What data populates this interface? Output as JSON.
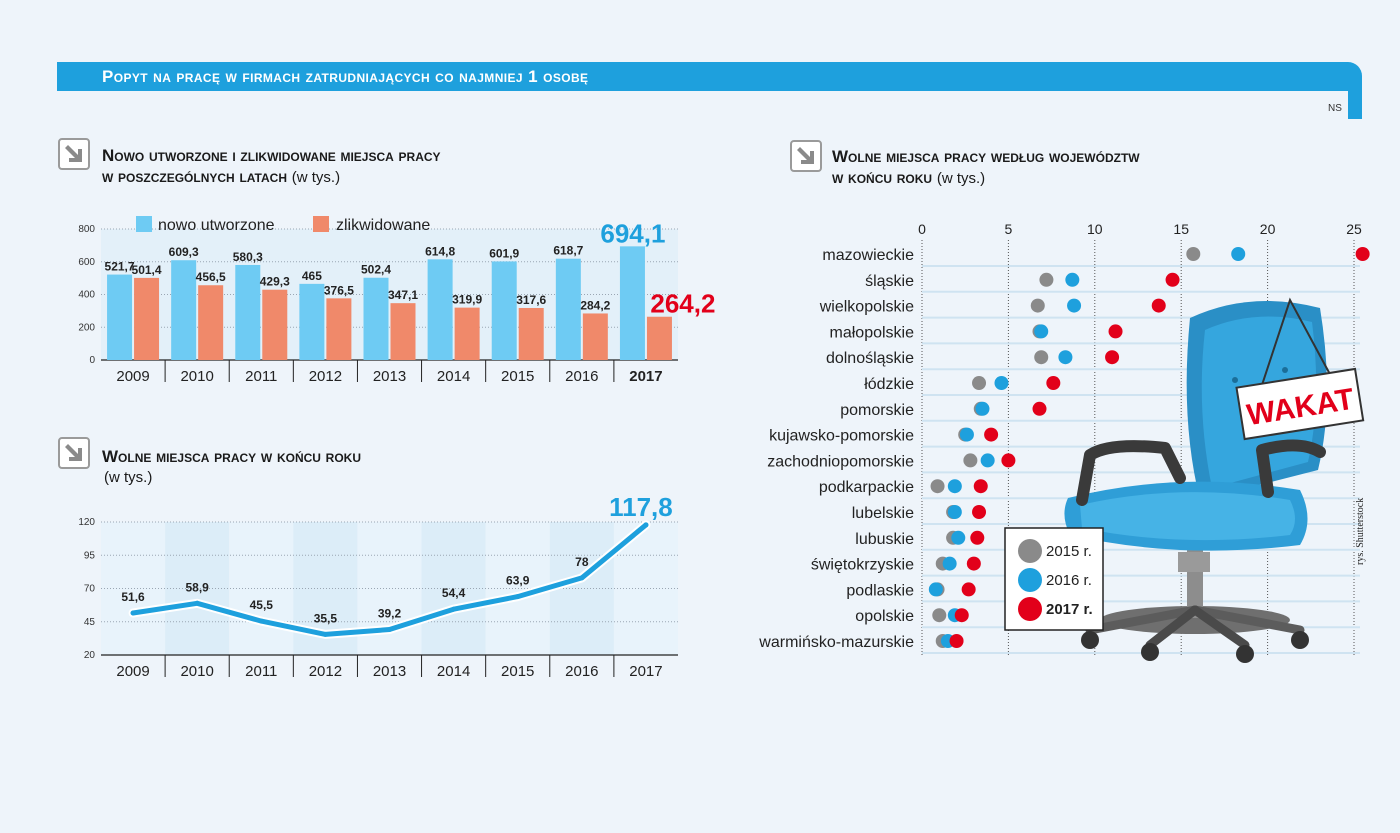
{
  "banner": {
    "title": "Popyt na pracę w firmach zatrudniających co najmniej 1 osobę",
    "source": "NS"
  },
  "colors": {
    "blue": "#6ecbf3",
    "salmon": "#f0896a",
    "accent_blue": "#1ea0dd",
    "red": "#e2001a",
    "gray": "#8a8a8a"
  },
  "section1": {
    "title_line1": "Nowo utworzone i zlikwidowane miejsca pracy",
    "title_line2": "w poszczególnych latach",
    "unit": "(w tys.)"
  },
  "section2": {
    "title_line1": "Wolne miejsca pracy w końcu roku",
    "unit": "(w tys.)"
  },
  "section3": {
    "title_line1": "Wolne miejsca pracy według województw",
    "title_line2": "w końcu roku",
    "unit": "(w tys.)",
    "sign_text": "WAKAT"
  },
  "credit": "rys. Shutterstock",
  "chart_data": [
    {
      "type": "bar",
      "title": "Nowo utworzone i zlikwidowane miejsca pracy w poszczególnych latach (w tys.)",
      "categories": [
        "2009",
        "2010",
        "2011",
        "2012",
        "2013",
        "2014",
        "2015",
        "2016",
        "2017"
      ],
      "series": [
        {
          "name": "nowo utworzone",
          "values": [
            521.7,
            609.3,
            580.3,
            465,
            502.4,
            614.8,
            601.9,
            618.7,
            694.1
          ],
          "labels": [
            "521,7",
            "609,3",
            "580,3",
            "465",
            "502,4",
            "614,8",
            "601,9",
            "618,7",
            "694,1"
          ]
        },
        {
          "name": "zlikwidowane",
          "values": [
            501.4,
            456.5,
            429.3,
            376.5,
            347.1,
            319.9,
            317.6,
            284.2,
            264.2
          ],
          "labels": [
            "501,4",
            "456,5",
            "429,3",
            "376,5",
            "347,1",
            "319,9",
            "317,6",
            "284,2",
            "264,2"
          ]
        }
      ],
      "ylim": [
        0,
        800
      ],
      "yticks": [
        "0",
        "200",
        "400",
        "600",
        "800"
      ],
      "legend": "top"
    },
    {
      "type": "line",
      "title": "Wolne miejsca pracy w końcu roku (w tys.)",
      "categories": [
        "2009",
        "2010",
        "2011",
        "2012",
        "2013",
        "2014",
        "2015",
        "2016",
        "2017"
      ],
      "values": [
        51.6,
        58.9,
        45.5,
        35.5,
        39.2,
        54.4,
        63.9,
        78,
        117.8
      ],
      "labels": [
        "51,6",
        "58,9",
        "45,5",
        "35,5",
        "39,2",
        "54,4",
        "63,9",
        "78",
        "117,8"
      ],
      "ylim": [
        20,
        120
      ],
      "yticks": [
        "20",
        "45",
        "70",
        "95",
        "120"
      ]
    },
    {
      "type": "scatter",
      "title": "Wolne miejsca pracy według województw w końcu roku (w tys.)",
      "xlim": [
        0,
        25
      ],
      "xticks": [
        "0",
        "5",
        "10",
        "15",
        "20",
        "25"
      ],
      "legend": [
        "2015 r.",
        "2016 r.",
        "2017 r."
      ],
      "categories": [
        "mazowieckie",
        "śląskie",
        "wielkopolskie",
        "małopolskie",
        "dolnośląskie",
        "łódzkie",
        "pomorskie",
        "kujawsko-pomorskie",
        "zachodniopomorskie",
        "podkarpackie",
        "lubelskie",
        "lubuskie",
        "świętokrzyskie",
        "podlaskie",
        "opolskie",
        "warmińsko-mazurskie"
      ],
      "series": [
        {
          "name": "2015 r.",
          "values": [
            15.7,
            7.2,
            6.7,
            6.8,
            6.9,
            3.3,
            3.4,
            2.5,
            2.8,
            0.9,
            1.8,
            1.8,
            1.2,
            0.9,
            1.0,
            1.2
          ]
        },
        {
          "name": "2016 r.",
          "values": [
            18.3,
            8.7,
            8.8,
            6.9,
            8.3,
            4.6,
            3.5,
            2.6,
            3.8,
            1.9,
            1.9,
            2.1,
            1.6,
            0.8,
            1.9,
            1.5
          ]
        },
        {
          "name": "2017 r.",
          "values": [
            25.5,
            14.5,
            13.7,
            11.2,
            11.0,
            7.6,
            6.8,
            4.0,
            5.0,
            3.4,
            3.3,
            3.2,
            3.0,
            2.7,
            2.3,
            2.0
          ]
        }
      ]
    }
  ]
}
